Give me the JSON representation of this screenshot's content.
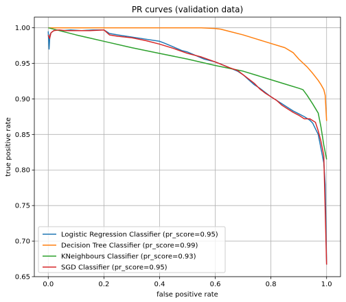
{
  "chart_data": {
    "type": "line",
    "title": "PR curves (validation data)",
    "xlabel": "false positive rate",
    "ylabel": "true positive rate",
    "xlim": [
      -0.05,
      1.05
    ],
    "ylim": [
      0.65,
      1.015
    ],
    "xticks": [
      0.0,
      0.2,
      0.4,
      0.6,
      0.8,
      1.0
    ],
    "xtick_labels": [
      "0.0",
      "0.2",
      "0.4",
      "0.6",
      "0.8",
      "1.0"
    ],
    "yticks": [
      0.65,
      0.7,
      0.75,
      0.8,
      0.85,
      0.9,
      0.95,
      1.0
    ],
    "ytick_labels": [
      "0.65",
      "0.70",
      "0.75",
      "0.80",
      "0.85",
      "0.90",
      "0.95",
      "1.00"
    ],
    "grid": true,
    "legend_position": "lower-left",
    "series": [
      {
        "name": "Logistic Regression Classifier (pr_score=0.95)",
        "color": "#1f77b4",
        "x": [
          0.0,
          0.003,
          0.006,
          0.01,
          0.02,
          0.03,
          0.05,
          0.08,
          0.12,
          0.16,
          0.2,
          0.22,
          0.25,
          0.3,
          0.35,
          0.4,
          0.42,
          0.45,
          0.48,
          0.5,
          0.53,
          0.56,
          0.6,
          0.62,
          0.65,
          0.68,
          0.7,
          0.72,
          0.74,
          0.76,
          0.78,
          0.8,
          0.82,
          0.84,
          0.86,
          0.88,
          0.9,
          0.92,
          0.94,
          0.95,
          0.96,
          0.97,
          0.98,
          0.985,
          0.99,
          0.995,
          1.0
        ],
        "y": [
          0.995,
          0.97,
          0.99,
          0.993,
          0.996,
          0.997,
          0.996,
          0.997,
          0.996,
          0.997,
          0.997,
          0.992,
          0.99,
          0.987,
          0.984,
          0.981,
          0.978,
          0.973,
          0.968,
          0.966,
          0.961,
          0.956,
          0.952,
          0.949,
          0.944,
          0.939,
          0.934,
          0.927,
          0.92,
          0.915,
          0.909,
          0.903,
          0.898,
          0.893,
          0.888,
          0.883,
          0.879,
          0.875,
          0.87,
          0.866,
          0.858,
          0.85,
          0.83,
          0.82,
          0.81,
          0.78,
          0.667
        ]
      },
      {
        "name": "Decision Tree Classifier (pr_score=0.99)",
        "color": "#ff7f0e",
        "x": [
          0.0,
          0.05,
          0.1,
          0.2,
          0.3,
          0.4,
          0.5,
          0.55,
          0.6,
          0.62,
          0.65,
          0.7,
          0.75,
          0.8,
          0.85,
          0.88,
          0.9,
          0.93,
          0.95,
          0.97,
          0.98,
          0.99,
          0.995,
          1.0
        ],
        "y": [
          1.0,
          1.0,
          1.0,
          1.0,
          1.0,
          1.0,
          1.0,
          1.0,
          0.999,
          0.998,
          0.995,
          0.99,
          0.984,
          0.978,
          0.972,
          0.965,
          0.956,
          0.945,
          0.936,
          0.926,
          0.92,
          0.913,
          0.905,
          0.869
        ]
      },
      {
        "name": "KNeighbours Classifier (pr_score=0.93)",
        "color": "#2ca02c",
        "x": [
          0.0,
          0.1,
          0.2,
          0.3,
          0.4,
          0.5,
          0.6,
          0.65,
          0.7,
          0.75,
          0.8,
          0.85,
          0.9,
          0.915,
          0.93,
          0.95,
          0.97,
          0.98,
          0.99,
          1.0
        ],
        "y": [
          1.0,
          0.99,
          0.981,
          0.972,
          0.964,
          0.956,
          0.947,
          0.943,
          0.939,
          0.933,
          0.927,
          0.921,
          0.915,
          0.913,
          0.905,
          0.893,
          0.88,
          0.86,
          0.835,
          0.815
        ]
      },
      {
        "name": "SGD Classifier (pr_score=0.95)",
        "color": "#d62728",
        "x": [
          0.0,
          0.005,
          0.01,
          0.02,
          0.04,
          0.06,
          0.1,
          0.15,
          0.2,
          0.22,
          0.25,
          0.3,
          0.35,
          0.4,
          0.45,
          0.5,
          0.55,
          0.6,
          0.65,
          0.68,
          0.7,
          0.72,
          0.74,
          0.76,
          0.78,
          0.8,
          0.82,
          0.84,
          0.86,
          0.88,
          0.9,
          0.92,
          0.94,
          0.96,
          0.97,
          0.98,
          0.99,
          1.0
        ],
        "y": [
          0.99,
          0.985,
          0.993,
          0.996,
          0.997,
          0.996,
          0.996,
          0.996,
          0.997,
          0.99,
          0.988,
          0.986,
          0.982,
          0.977,
          0.971,
          0.964,
          0.959,
          0.952,
          0.944,
          0.94,
          0.934,
          0.928,
          0.922,
          0.914,
          0.908,
          0.903,
          0.898,
          0.891,
          0.886,
          0.881,
          0.877,
          0.872,
          0.872,
          0.867,
          0.855,
          0.84,
          0.82,
          0.667
        ]
      }
    ]
  }
}
